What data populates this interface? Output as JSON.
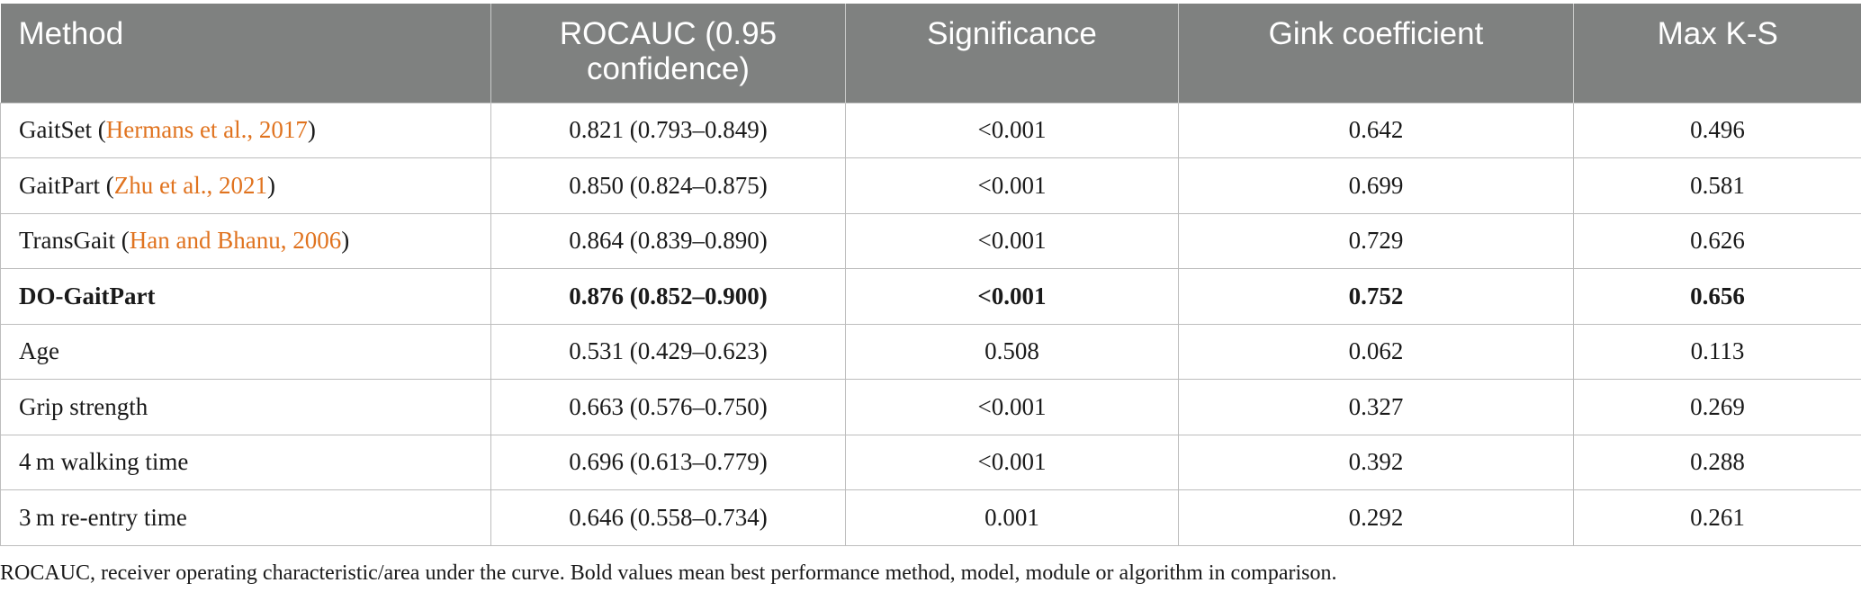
{
  "table": {
    "headers": [
      "Method",
      "ROCAUC (0.95 confidence)",
      "Significance",
      "Gink coefficient",
      "Max K-S"
    ],
    "rows": [
      {
        "method": "GaitSet (",
        "cite": "Hermans et al., 2017",
        "method_end": ")",
        "rocauc": "0.821 (0.793–0.849)",
        "significance": "<0.001",
        "gink": "0.642",
        "maxks": "0.496"
      },
      {
        "method": "GaitPart (",
        "cite": "Zhu et al., 2021",
        "method_end": ")",
        "rocauc": "0.850 (0.824–0.875)",
        "significance": "<0.001",
        "gink": "0.699",
        "maxks": "0.581"
      },
      {
        "method": "TransGait (",
        "cite": "Han and Bhanu, 2006",
        "method_end": ")",
        "rocauc": "0.864 (0.839–0.890)",
        "significance": "<0.001",
        "gink": "0.729",
        "maxks": "0.626"
      },
      {
        "method": "DO-GaitPart",
        "rocauc": "0.876 (0.852–0.900)",
        "significance": "<0.001",
        "gink": "0.752",
        "maxks": "0.656"
      },
      {
        "method": "Age",
        "rocauc": "0.531 (0.429–0.623)",
        "significance": "0.508",
        "gink": "0.062",
        "maxks": "0.113"
      },
      {
        "method": "Grip strength",
        "rocauc": "0.663 (0.576–0.750)",
        "significance": "<0.001",
        "gink": "0.327",
        "maxks": "0.269"
      },
      {
        "method": "4 m walking time",
        "rocauc": "0.696 (0.613–0.779)",
        "significance": "<0.001",
        "gink": "0.392",
        "maxks": "0.288"
      },
      {
        "method": "3 m re-entry time",
        "rocauc": "0.646 (0.558–0.734)",
        "significance": "0.001",
        "gink": "0.292",
        "maxks": "0.261"
      }
    ]
  },
  "colors": {
    "header_bg": "#7f8180",
    "header_text": "#ffffff",
    "citation": "#e0731f",
    "grid": "#bdbdbd"
  },
  "footnote": "ROCAUC, receiver operating characteristic/area under the curve. Bold values mean best performance method, model, module or algorithm in comparison."
}
